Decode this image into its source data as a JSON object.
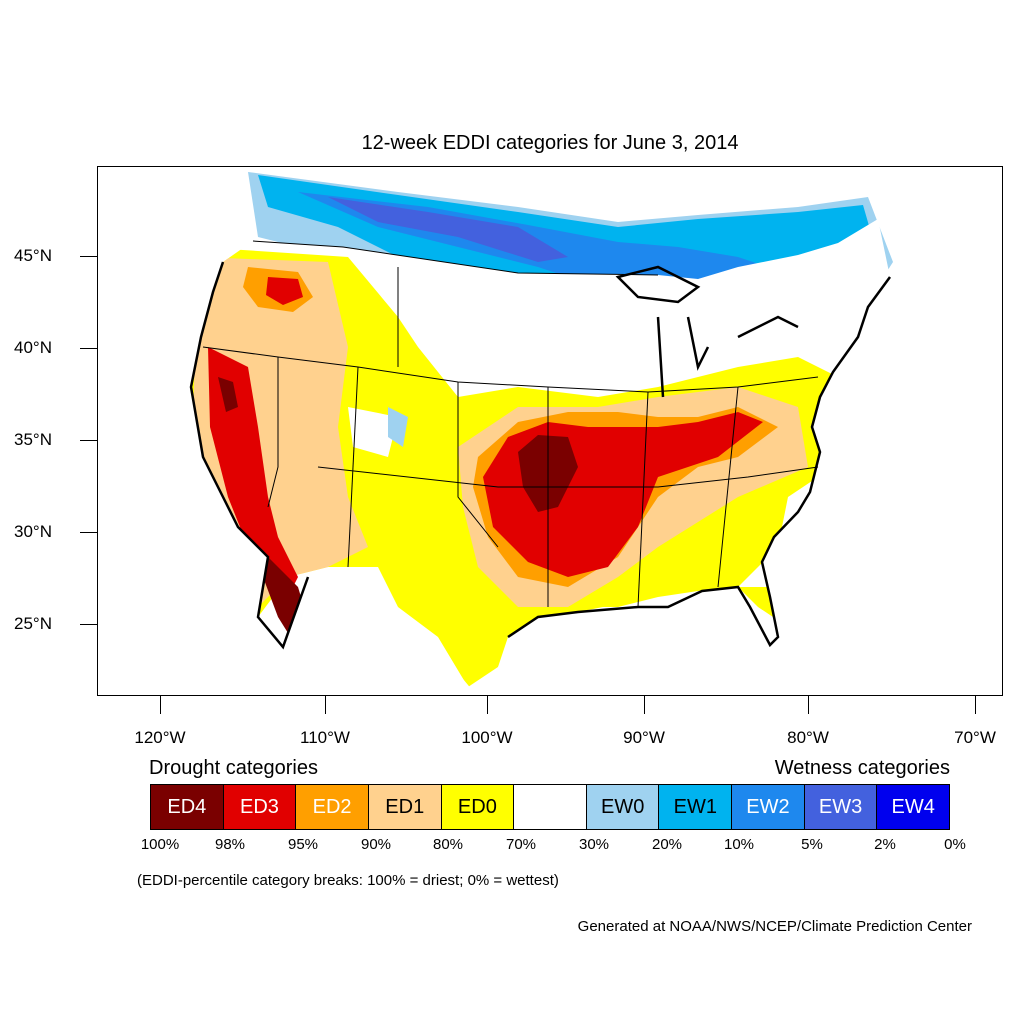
{
  "map": {
    "title": "12-week EDDI categories for June 3, 2014",
    "lat_labels": [
      "45°N",
      "40°N",
      "35°N",
      "30°N",
      "25°N"
    ],
    "lon_labels": [
      "120°W",
      "110°W",
      "100°W",
      "90°W",
      "80°W",
      "70°W"
    ]
  },
  "legend": {
    "drought_heading": "Drought categories",
    "wetness_heading": "Wetness categories",
    "categories": [
      {
        "label": "ED4",
        "color": "#7a0000",
        "text_color": "#ffffff"
      },
      {
        "label": "ED3",
        "color": "#e10000",
        "text_color": "#ffffff"
      },
      {
        "label": "ED2",
        "color": "#ff9f00",
        "text_color": "#ffffff"
      },
      {
        "label": "ED1",
        "color": "#ffd18e",
        "text_color": "#000000"
      },
      {
        "label": "ED0",
        "color": "#ffff00",
        "text_color": "#000000"
      },
      {
        "label": "",
        "color": "#ffffff",
        "text_color": "#000000"
      },
      {
        "label": "EW0",
        "color": "#9fd2f0",
        "text_color": "#000000"
      },
      {
        "label": "EW1",
        "color": "#00b3ef",
        "text_color": "#000000"
      },
      {
        "label": "EW2",
        "color": "#1e88ee",
        "text_color": "#ffffff"
      },
      {
        "label": "EW3",
        "color": "#4361de",
        "text_color": "#ffffff"
      },
      {
        "label": "EW4",
        "color": "#0000ee",
        "text_color": "#ffffff"
      }
    ],
    "percent_breaks": [
      "100%",
      "98%",
      "95%",
      "90%",
      "80%",
      "70%",
      "30%",
      "20%",
      "10%",
      "5%",
      "2%",
      "0%"
    ],
    "breaks_note": "(EDDI-percentile category breaks: 100% = driest; 0% = wettest)"
  },
  "credit": "Generated at NOAA/NWS/NCEP/Climate Prediction Center"
}
